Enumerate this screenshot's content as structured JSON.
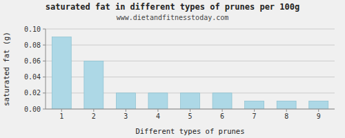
{
  "chart_data": {
    "type": "bar",
    "title": "saturated fat in different types of prunes per 100g",
    "subtitle": "www.dietandfitnesstoday.com",
    "x_label": "Different types of prunes",
    "y_label": "saturated fat (g)",
    "categories": [
      1,
      2,
      3,
      4,
      5,
      6,
      7,
      8,
      9
    ],
    "values": [
      0.09,
      0.06,
      0.02,
      0.02,
      0.02,
      0.02,
      0.01,
      0.01,
      0.01
    ],
    "color": "#add8e6",
    "ylim": [
      0,
      0.1
    ],
    "yticks": [
      {
        "value": 0,
        "label": "0.00"
      },
      0.02,
      0.04,
      0.06,
      0.08,
      {
        "value": 0.1,
        "label": "0.10"
      }
    ],
    "grid": true
  }
}
